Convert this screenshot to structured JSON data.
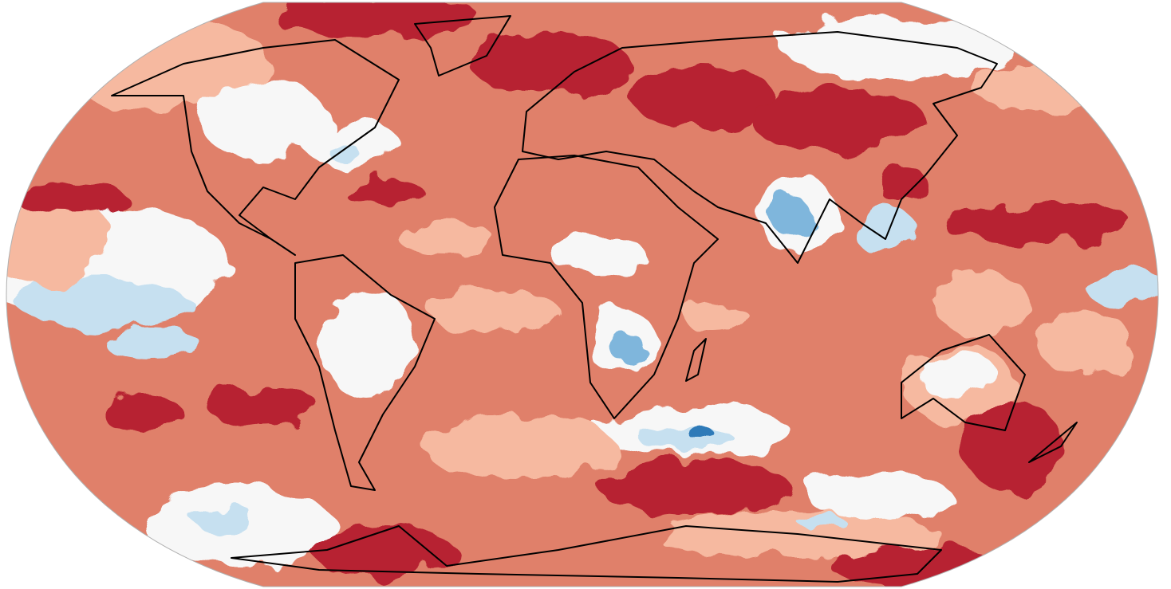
{
  "map": {
    "projection": "robinson",
    "coastlines": true,
    "colors": {
      "strong_warm": "#b72330",
      "warm": "#e0806a",
      "mild_warm": "#f6b9a0",
      "neutral": "#f7f7f7",
      "mild_cool": "#c6e0f0",
      "cool": "#7fb6dc",
      "strong_cool": "#2f7ab8",
      "coastline": "#000000",
      "frame": "#b0b0b0"
    }
  }
}
